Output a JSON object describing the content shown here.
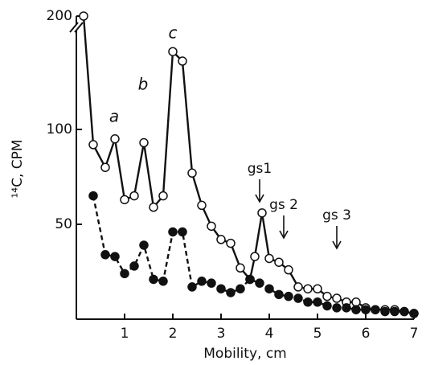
{
  "chart_data": {
    "type": "line",
    "x_label": "Mobility, cm",
    "y_label": "¹⁴C, CPM",
    "xlim": [
      0,
      7
    ],
    "xticks": [
      1,
      2,
      3,
      4,
      5,
      6,
      7
    ],
    "ylim": [
      0,
      200
    ],
    "yticks": [
      50,
      100,
      200
    ],
    "axis_break": true,
    "series": [
      {
        "marker": "open",
        "color": "#111",
        "x": [
          0.15,
          0.35,
          0.6,
          0.8,
          1.0,
          1.2,
          1.4,
          1.6,
          1.8,
          2.0,
          2.2,
          2.4,
          2.6,
          2.8,
          3.0,
          3.2,
          3.4,
          3.6,
          3.7,
          3.85,
          4.0,
          4.2,
          4.4,
          4.6,
          4.8,
          5.0,
          5.2,
          5.4,
          5.6,
          5.8,
          6.0,
          6.2,
          6.4,
          6.6,
          6.8,
          7.0
        ],
        "values": [
          200,
          92,
          80,
          95,
          63,
          65,
          93,
          59,
          65,
          141,
          136,
          77,
          60,
          49,
          42,
          40,
          27,
          21,
          33,
          56,
          32,
          30,
          26,
          17,
          16,
          16,
          12,
          11,
          9,
          9,
          6,
          5,
          5,
          5,
          4,
          3
        ]
      },
      {
        "marker": "filled",
        "color": "#111",
        "dashed": true,
        "x": [
          0.35,
          0.6,
          0.8,
          1.0,
          1.2,
          1.4,
          1.6,
          1.8,
          2.0,
          2.2,
          2.4,
          2.6,
          2.8,
          3.0,
          3.2,
          3.4,
          3.6,
          3.8,
          4.0,
          4.2,
          4.4,
          4.6,
          4.8,
          5.0,
          5.2,
          5.4,
          5.6,
          5.8,
          6.0,
          6.2,
          6.4,
          6.6,
          6.8,
          7.0
        ],
        "values": [
          65,
          34,
          33,
          24,
          28,
          39,
          21,
          20,
          46,
          46,
          17,
          20,
          19,
          16,
          14,
          16,
          21,
          19,
          16,
          13,
          12,
          11,
          9,
          9,
          7,
          6,
          6,
          5,
          5,
          5,
          4,
          4,
          4,
          3
        ]
      }
    ],
    "peak_labels": [
      "a",
      "b",
      "c"
    ],
    "markers": [
      {
        "label": "gs1",
        "x": 3.8
      },
      {
        "label": "gs 2",
        "x": 4.3
      },
      {
        "label": "gs 3",
        "x": 5.4
      }
    ]
  }
}
